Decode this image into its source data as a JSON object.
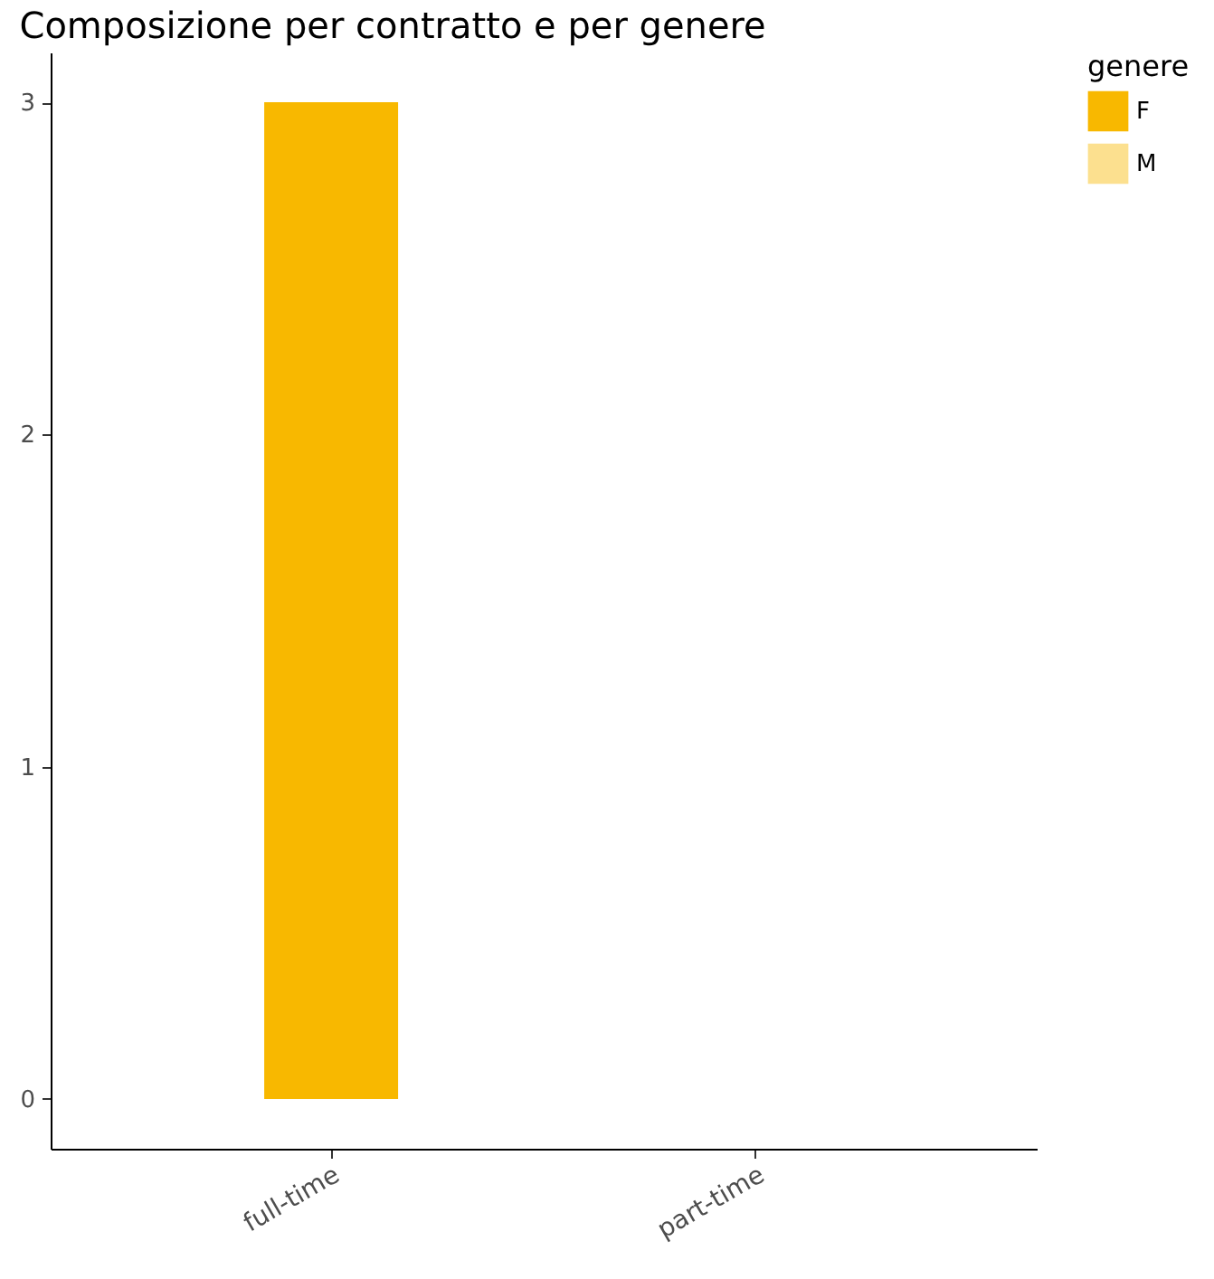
{
  "chart_data": {
    "type": "bar",
    "title": "Composizione per contratto e per genere",
    "legend_title": "genere",
    "categories": [
      "full-time",
      "part-time"
    ],
    "series": [
      {
        "name": "F",
        "color": "#f8b800",
        "values": [
          3,
          0
        ]
      },
      {
        "name": "M",
        "color": "#fce08f",
        "values": [
          0,
          0
        ]
      }
    ],
    "ylim": [
      -0.15,
      3.15
    ],
    "yticks": [
      0,
      1,
      2,
      3
    ],
    "grid": false,
    "legend": "right"
  }
}
